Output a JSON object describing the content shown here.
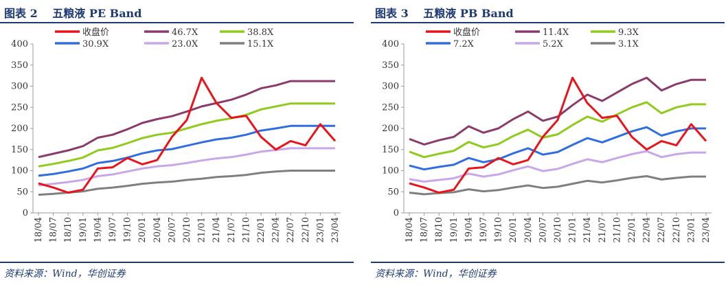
{
  "colors": {
    "title": "#1d3a74",
    "close": "#e8141a",
    "s1": "#8b3a6a",
    "s2": "#8ecb1a",
    "s3": "#2e6ee0",
    "s4": "#c8a6ea",
    "s5": "#7f7f7f",
    "axis": "#9a9a9a"
  },
  "panels": [
    {
      "id": "pe",
      "figure_label": "图表 2",
      "title": "五粮液 PE Band",
      "source": "资料来源：Wind，华创证券",
      "legend": [
        "收盘价",
        "46.7X",
        "38.8X",
        "30.9X",
        "23.0X",
        "15.1X"
      ]
    },
    {
      "id": "pb",
      "figure_label": "图表 3",
      "title": "五粮液 PB Band",
      "source": "资料来源：Wind，华创证券",
      "legend": [
        "收盘价",
        "11.4X",
        "9.3X",
        "7.2X",
        "5.2X",
        "3.1X"
      ]
    }
  ],
  "chart_data": [
    {
      "type": "line",
      "title": "五粮液 PE Band",
      "ylim": [
        0,
        400
      ],
      "yticks": [
        0,
        50,
        100,
        150,
        200,
        250,
        300,
        350,
        400
      ],
      "categories": [
        "18/04",
        "18/07",
        "18/10",
        "19/01",
        "19/04",
        "19/07",
        "19/10",
        "20/01",
        "20/04",
        "20/07",
        "20/10",
        "21/01",
        "21/04",
        "21/07",
        "21/10",
        "22/01",
        "22/04",
        "22/07",
        "22/10",
        "23/01",
        "23/04"
      ],
      "series": [
        {
          "name": "收盘价",
          "values": [
            70,
            60,
            48,
            55,
            105,
            108,
            130,
            115,
            125,
            180,
            220,
            320,
            260,
            225,
            230,
            180,
            150,
            170,
            160,
            210,
            170
          ]
        },
        {
          "name": "46.7X",
          "values": [
            132,
            140,
            148,
            158,
            178,
            185,
            198,
            213,
            222,
            229,
            240,
            252,
            260,
            268,
            280,
            295,
            302,
            312,
            312,
            312,
            312
          ]
        },
        {
          "name": "38.8X",
          "values": [
            110,
            116,
            123,
            131,
            148,
            154,
            165,
            177,
            185,
            190,
            200,
            210,
            218,
            224,
            232,
            245,
            252,
            259,
            259,
            259,
            259
          ]
        },
        {
          "name": "30.9X",
          "values": [
            88,
            92,
            98,
            105,
            118,
            123,
            131,
            141,
            148,
            151,
            159,
            167,
            174,
            178,
            185,
            195,
            200,
            206,
            206,
            206,
            206
          ]
        },
        {
          "name": "23.0X",
          "values": [
            65,
            69,
            73,
            78,
            87,
            91,
            98,
            105,
            110,
            113,
            118,
            124,
            129,
            132,
            138,
            145,
            149,
            153,
            153,
            153,
            153
          ]
        },
        {
          "name": "15.1X",
          "values": [
            43,
            45,
            48,
            51,
            57,
            60,
            64,
            69,
            72,
            74,
            78,
            81,
            85,
            87,
            90,
            95,
            98,
            100,
            100,
            100,
            100
          ]
        }
      ]
    },
    {
      "type": "line",
      "title": "五粮液 PB Band",
      "ylim": [
        0,
        400
      ],
      "yticks": [
        0,
        50,
        100,
        150,
        200,
        250,
        300,
        350,
        400
      ],
      "categories": [
        "18/04",
        "18/07",
        "18/10",
        "19/01",
        "19/04",
        "19/07",
        "19/10",
        "20/01",
        "20/04",
        "20/07",
        "20/10",
        "21/01",
        "21/04",
        "21/07",
        "21/10",
        "22/01",
        "22/04",
        "22/07",
        "22/10",
        "23/01",
        "23/04"
      ],
      "series": [
        {
          "name": "收盘价",
          "values": [
            70,
            60,
            48,
            55,
            105,
            108,
            130,
            115,
            125,
            180,
            220,
            320,
            260,
            225,
            230,
            180,
            150,
            170,
            160,
            210,
            170
          ]
        },
        {
          "name": "11.4X",
          "values": [
            175,
            162,
            172,
            180,
            205,
            190,
            200,
            222,
            240,
            218,
            228,
            255,
            280,
            265,
            285,
            305,
            320,
            290,
            305,
            315,
            315
          ]
        },
        {
          "name": "9.3X",
          "values": [
            145,
            132,
            140,
            147,
            168,
            155,
            163,
            182,
            197,
            178,
            186,
            208,
            228,
            216,
            233,
            250,
            262,
            236,
            250,
            257,
            257
          ]
        },
        {
          "name": "7.2X",
          "values": [
            112,
            103,
            109,
            114,
            130,
            120,
            127,
            141,
            153,
            138,
            144,
            161,
            177,
            167,
            180,
            193,
            203,
            183,
            193,
            200,
            200
          ]
        },
        {
          "name": "5.2X",
          "values": [
            80,
            74,
            78,
            82,
            93,
            86,
            91,
            101,
            110,
            99,
            104,
            116,
            127,
            120,
            130,
            139,
            146,
            132,
            139,
            143,
            143
          ]
        },
        {
          "name": "3.1X",
          "values": [
            48,
            44,
            47,
            49,
            56,
            51,
            54,
            60,
            65,
            59,
            62,
            69,
            76,
            72,
            77,
            83,
            87,
            79,
            83,
            86,
            86
          ]
        }
      ]
    }
  ]
}
